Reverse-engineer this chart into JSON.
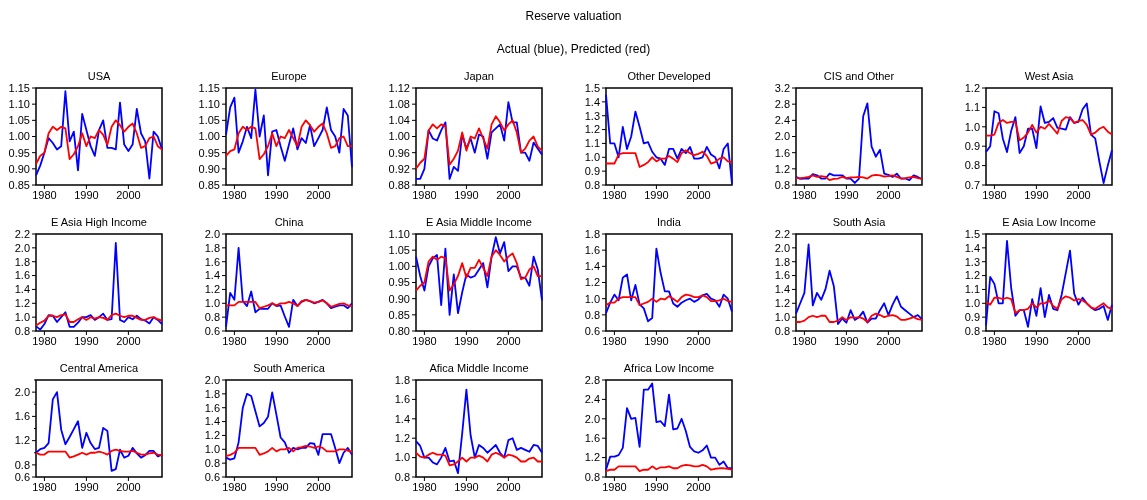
{
  "chart_data": [
    {
      "type": "other",
      "title": "Reserve valuation",
      "subtitle": "Actual (blue), Predicted (red)"
    },
    {
      "type": "line",
      "title": "USA",
      "x": [
        1978,
        1979,
        1980,
        1981,
        1982,
        1983,
        1984,
        1985,
        1986,
        1987,
        1988,
        1989,
        1990,
        1991,
        1992,
        1993,
        1994,
        1995,
        1996,
        1997,
        1998,
        1999,
        2000,
        2001,
        2002,
        2003,
        2004,
        2005,
        2006,
        2007,
        2008
      ],
      "xlim": [
        1978,
        2008
      ],
      "xticks": [
        1980,
        1990,
        2000
      ],
      "ylim": [
        0.85,
        1.15
      ],
      "yticks": [
        0.85,
        {
          "value": 0.9,
          "label": "0.90"
        },
        0.95,
        {
          "value": 1.0,
          "label": "1.00"
        },
        1.05,
        {
          "value": 1.1,
          "label": "1.10"
        },
        1.15
      ],
      "series": [
        {
          "color": "#0000ff",
          "values": [
            0.88,
            0.91,
            0.95,
            0.995,
            0.98,
            0.96,
            0.97,
            1.14,
            0.985,
            1.015,
            0.895,
            1.07,
            1.02,
            0.97,
            0.94,
            1.02,
            1.05,
            0.965,
            0.965,
            0.96,
            1.105,
            0.975,
            0.955,
            0.975,
            1.085,
            1.01,
            0.985,
            0.87,
            1.015,
            1.0,
            0.96
          ]
        },
        {
          "color": "#ff0000",
          "values": [
            0.915,
            0.94,
            0.95,
            1.01,
            1.03,
            1.02,
            1.03,
            1.025,
            0.93,
            0.945,
            0.97,
            1.01,
            0.97,
            1.0,
            0.995,
            1.02,
            1.005,
            0.975,
            1.03,
            1.05,
            1.035,
            1.015,
            1.03,
            1.04,
            1.01,
            0.965,
            0.97,
            0.995,
            1.0,
            0.97,
            0.96
          ]
        }
      ]
    },
    {
      "type": "line",
      "title": "Europe",
      "x": [
        1978,
        1979,
        1980,
        1981,
        1982,
        1983,
        1984,
        1985,
        1986,
        1987,
        1988,
        1989,
        1990,
        1991,
        1992,
        1993,
        1994,
        1995,
        1996,
        1997,
        1998,
        1999,
        2000,
        2001,
        2002,
        2003,
        2004,
        2005,
        2006,
        2007,
        2008
      ],
      "xlim": [
        1978,
        2008
      ],
      "xticks": [
        1980,
        1990,
        2000
      ],
      "ylim": [
        0.85,
        1.15
      ],
      "yticks": [
        0.85,
        {
          "value": 0.9,
          "label": "0.90"
        },
        0.95,
        {
          "value": 1.0,
          "label": "1.00"
        },
        1.05,
        {
          "value": 1.1,
          "label": "1.10"
        },
        1.15
      ],
      "series": [
        {
          "color": "#0000ff",
          "values": [
            1.005,
            1.09,
            1.12,
            0.95,
            0.985,
            1.03,
            0.995,
            1.145,
            1.0,
            1.065,
            0.88,
            1.015,
            1.02,
            0.97,
            0.925,
            0.975,
            1.025,
            0.96,
            0.995,
            0.98,
            1.035,
            0.97,
            0.995,
            1.02,
            1.09,
            1.02,
            1.0,
            0.95,
            1.085,
            1.065,
            0.905
          ]
        },
        {
          "color": "#ff0000",
          "values": [
            0.94,
            0.955,
            0.96,
            1.01,
            1.03,
            1.02,
            1.03,
            1.025,
            0.93,
            0.945,
            0.97,
            1.01,
            0.97,
            1.0,
            0.995,
            1.02,
            0.995,
            0.97,
            1.03,
            1.05,
            1.035,
            1.015,
            1.03,
            1.04,
            1.01,
            0.965,
            0.97,
            0.995,
            1.0,
            0.97,
            0.97
          ]
        }
      ]
    },
    {
      "type": "line",
      "title": "Japan",
      "x": [
        1978,
        1979,
        1980,
        1981,
        1982,
        1983,
        1984,
        1985,
        1986,
        1987,
        1988,
        1989,
        1990,
        1991,
        1992,
        1993,
        1994,
        1995,
        1996,
        1997,
        1998,
        1999,
        2000,
        2001,
        2002,
        2003,
        2004,
        2005,
        2006,
        2007,
        2008
      ],
      "xlim": [
        1978,
        2008
      ],
      "xticks": [
        1980,
        1990,
        2000
      ],
      "ylim": [
        0.88,
        1.12
      ],
      "yticks": [
        0.88,
        0.92,
        0.96,
        {
          "value": 1.0,
          "label": "1.00"
        },
        1.04,
        1.08,
        1.12
      ],
      "series": [
        {
          "color": "#0000ff",
          "values": [
            0.895,
            0.895,
            0.92,
            1.015,
            0.995,
            0.99,
            1.015,
            1.035,
            0.895,
            0.925,
            0.915,
            1.005,
            0.97,
            0.995,
            0.96,
            1.005,
            1.0,
            0.945,
            1.01,
            1.02,
            1.03,
            0.99,
            1.085,
            1.035,
            1.035,
            0.96,
            0.96,
            0.94,
            0.985,
            0.97,
            0.955
          ]
        },
        {
          "color": "#ff0000",
          "values": [
            0.92,
            0.935,
            0.945,
            1.015,
            1.03,
            1.02,
            1.03,
            1.025,
            0.93,
            0.945,
            0.965,
            1.01,
            0.965,
            1.0,
            0.995,
            1.02,
            0.995,
            0.97,
            1.03,
            1.05,
            1.035,
            1.015,
            1.03,
            1.04,
            1.01,
            0.96,
            0.97,
            0.99,
            1.0,
            0.975,
            0.965
          ]
        }
      ]
    },
    {
      "type": "line",
      "title": "Other Developed",
      "x": [
        1978,
        1979,
        1980,
        1981,
        1982,
        1983,
        1984,
        1985,
        1986,
        1987,
        1988,
        1989,
        1990,
        1991,
        1992,
        1993,
        1994,
        1995,
        1996,
        1997,
        1998,
        1999,
        2000,
        2001,
        2002,
        2003,
        2004,
        2005,
        2006,
        2007,
        2008
      ],
      "xlim": [
        1978,
        2008
      ],
      "xticks": [
        1980,
        1990,
        2000
      ],
      "ylim": [
        0.8,
        1.5
      ],
      "yticks": [
        0.8,
        0.9,
        {
          "value": 1.0,
          "label": "1.0"
        },
        1.1,
        1.2,
        1.3,
        1.4,
        1.5
      ],
      "series": [
        {
          "color": "#0000ff",
          "values": [
            1.45,
            1.1,
            1.1,
            1.0,
            1.22,
            1.06,
            1.15,
            1.33,
            1.22,
            1.1,
            1.11,
            1.04,
            1.0,
            0.99,
            0.945,
            1.06,
            1.06,
            0.99,
            1.06,
            1.03,
            1.075,
            0.99,
            0.99,
            1.0,
            1.075,
            1.02,
            1.0,
            0.92,
            1.06,
            1.1,
            0.81
          ]
        },
        {
          "color": "#ff0000",
          "values": [
            0.955,
            0.955,
            0.955,
            1.02,
            1.03,
            1.03,
            1.03,
            1.03,
            0.93,
            0.945,
            0.965,
            1.0,
            0.97,
            0.99,
            0.99,
            1.01,
            0.99,
            0.965,
            1.03,
            1.05,
            1.03,
            1.015,
            1.025,
            1.04,
            1.01,
            0.955,
            0.965,
            0.99,
            1.0,
            0.97,
            0.965
          ]
        }
      ]
    },
    {
      "type": "line",
      "title": "CIS and Other",
      "x": [
        1978,
        1979,
        1980,
        1981,
        1982,
        1983,
        1984,
        1985,
        1986,
        1987,
        1988,
        1989,
        1990,
        1991,
        1992,
        1993,
        1994,
        1995,
        1996,
        1997,
        1998,
        1999,
        2000,
        2001,
        2002,
        2003,
        2004,
        2005,
        2006,
        2007,
        2008
      ],
      "xlim": [
        1978,
        2008
      ],
      "xticks": [
        1980,
        1990,
        2000
      ],
      "ylim": [
        0.8,
        3.2
      ],
      "yticks": [
        0.8,
        1.2,
        1.6,
        {
          "value": 2.0,
          "label": "2.0"
        },
        2.4,
        2.8,
        3.2
      ],
      "series": [
        {
          "color": "#0000ff",
          "values": [
            1.0,
            0.95,
            0.96,
            0.96,
            1.07,
            1.04,
            0.96,
            0.96,
            1.08,
            1.04,
            1.04,
            1.04,
            0.96,
            0.96,
            0.85,
            0.96,
            2.5,
            2.82,
            1.75,
            1.5,
            1.67,
            1.08,
            1.05,
            1.0,
            1.08,
            0.96,
            0.96,
            0.92,
            1.04,
            1.0,
            0.94
          ]
        },
        {
          "color": "#ff0000",
          "values": [
            0.97,
            0.97,
            0.98,
            1.0,
            1.04,
            1.0,
            1.02,
            1.0,
            0.92,
            0.95,
            0.96,
            1.0,
            0.97,
            0.99,
            0.99,
            1.0,
            0.99,
            0.96,
            1.03,
            1.05,
            1.04,
            1.01,
            1.02,
            1.04,
            1.0,
            0.96,
            0.97,
            0.99,
            1.0,
            0.97,
            0.95
          ]
        }
      ]
    },
    {
      "type": "line",
      "title": "West Asia",
      "x": [
        1978,
        1979,
        1980,
        1981,
        1982,
        1983,
        1984,
        1985,
        1986,
        1987,
        1988,
        1989,
        1990,
        1991,
        1992,
        1993,
        1994,
        1995,
        1996,
        1997,
        1998,
        1999,
        2000,
        2001,
        2002,
        2003,
        2004,
        2005,
        2006,
        2007,
        2008
      ],
      "xlim": [
        1978,
        2008
      ],
      "xticks": [
        1980,
        1990,
        2000
      ],
      "ylim": [
        0.7,
        1.2
      ],
      "yticks": [
        0.7,
        0.8,
        0.9,
        {
          "value": 1.0,
          "label": "1.0"
        },
        1.1,
        1.2
      ],
      "series": [
        {
          "color": "#0000ff",
          "values": [
            0.87,
            0.9,
            1.08,
            1.07,
            0.94,
            0.87,
            0.98,
            1.05,
            0.865,
            0.9,
            0.99,
            0.99,
            0.89,
            1.105,
            1.02,
            1.025,
            1.045,
            0.995,
            0.99,
            0.985,
            1.05,
            1.02,
            1.025,
            1.09,
            1.12,
            0.96,
            0.94,
            0.82,
            0.71,
            0.8,
            0.88
          ]
        },
        {
          "color": "#ff0000",
          "values": [
            0.955,
            0.955,
            0.96,
            1.02,
            1.035,
            1.02,
            1.025,
            1.025,
            0.93,
            0.945,
            0.97,
            1.01,
            0.97,
            1.0,
            0.99,
            1.015,
            0.99,
            0.965,
            1.03,
            1.05,
            1.045,
            1.02,
            1.03,
            1.035,
            1.01,
            0.96,
            0.97,
            0.99,
            1.0,
            0.975,
            0.96
          ]
        }
      ]
    },
    {
      "type": "line",
      "title": "E Asia High Income",
      "x": [
        1978,
        1979,
        1980,
        1981,
        1982,
        1983,
        1984,
        1985,
        1986,
        1987,
        1988,
        1989,
        1990,
        1991,
        1992,
        1993,
        1994,
        1995,
        1996,
        1997,
        1998,
        1999,
        2000,
        2001,
        2002,
        2003,
        2004,
        2005,
        2006,
        2007,
        2008
      ],
      "xlim": [
        1978,
        2008
      ],
      "xticks": [
        1980,
        1990,
        2000
      ],
      "ylim": [
        0.8,
        2.2
      ],
      "yticks": [
        0.8,
        {
          "value": 1.0,
          "label": "1.0"
        },
        1.2,
        1.4,
        1.6,
        1.8,
        {
          "value": 2.0,
          "label": "2.0"
        },
        2.2
      ],
      "series": [
        {
          "color": "#0000ff",
          "values": [
            0.87,
            0.82,
            0.9,
            1.03,
            1.02,
            0.93,
            1.0,
            1.07,
            0.86,
            0.86,
            0.92,
            1.0,
            1.0,
            1.03,
            0.96,
            1.0,
            1.05,
            0.96,
            0.97,
            2.07,
            0.96,
            0.93,
            1.0,
            0.97,
            1.02,
            0.97,
            0.95,
            0.91,
            1.0,
            0.96,
            0.9
          ]
        },
        {
          "color": "#ff0000",
          "values": [
            0.88,
            0.92,
            0.95,
            1.02,
            1.02,
            1.0,
            1.03,
            1.04,
            0.93,
            0.93,
            0.97,
            1.0,
            0.96,
            1.0,
            0.98,
            1.0,
            0.99,
            0.96,
            1.03,
            1.05,
            1.02,
            1.0,
            1.02,
            1.02,
            0.99,
            0.96,
            0.96,
            0.99,
            1.0,
            0.97,
            0.95
          ]
        }
      ]
    },
    {
      "type": "line",
      "title": "China",
      "x": [
        1978,
        1979,
        1980,
        1981,
        1982,
        1983,
        1984,
        1985,
        1986,
        1987,
        1988,
        1989,
        1990,
        1991,
        1992,
        1993,
        1994,
        1995,
        1996,
        1997,
        1998,
        1999,
        2000,
        2001,
        2002,
        2003,
        2004,
        2005,
        2006,
        2007,
        2008
      ],
      "xlim": [
        1978,
        2008
      ],
      "xticks": [
        1980,
        1990,
        2000
      ],
      "ylim": [
        0.6,
        2.0
      ],
      "yticks": [
        0.6,
        0.8,
        {
          "value": 1.0,
          "label": "1.0"
        },
        1.2,
        1.4,
        1.6,
        1.8,
        {
          "value": 2.0,
          "label": "2.0"
        }
      ],
      "series": [
        {
          "color": "#0000ff",
          "values": [
            0.66,
            1.15,
            1.05,
            1.8,
            1.03,
            0.96,
            1.17,
            0.87,
            0.92,
            0.92,
            0.92,
            1.0,
            0.96,
            0.97,
            0.81,
            0.66,
            1.05,
            0.96,
            1.02,
            1.05,
            1.03,
            1.0,
            1.02,
            1.05,
            1.0,
            0.93,
            0.95,
            0.97,
            0.97,
            0.93,
            1.0
          ]
        },
        {
          "color": "#ff0000",
          "values": [
            0.97,
            0.97,
            0.97,
            1.02,
            1.02,
            1.02,
            1.02,
            1.02,
            0.93,
            0.95,
            0.97,
            1.0,
            0.97,
            1.0,
            1.0,
            1.02,
            1.0,
            0.96,
            1.03,
            1.05,
            1.03,
            1.01,
            1.02,
            1.04,
            1.0,
            0.95,
            0.97,
            0.99,
            1.0,
            0.97,
            0.96
          ]
        }
      ]
    },
    {
      "type": "line",
      "title": "E Asia Middle Income",
      "x": [
        1978,
        1979,
        1980,
        1981,
        1982,
        1983,
        1984,
        1985,
        1986,
        1987,
        1988,
        1989,
        1990,
        1991,
        1992,
        1993,
        1994,
        1995,
        1996,
        1997,
        1998,
        1999,
        2000,
        2001,
        2002,
        2003,
        2004,
        2005,
        2006,
        2007,
        2008
      ],
      "xlim": [
        1978,
        2008
      ],
      "xticks": [
        1980,
        1990,
        2000
      ],
      "ylim": [
        0.8,
        1.1
      ],
      "yticks": [
        {
          "value": 0.8,
          "label": "0.80"
        },
        0.85,
        {
          "value": 0.9,
          "label": "0.90"
        },
        0.95,
        {
          "value": 1.0,
          "label": "1.00"
        },
        1.05,
        {
          "value": 1.1,
          "label": "1.10"
        }
      ],
      "series": [
        {
          "color": "#0000ff",
          "values": [
            1.03,
            0.97,
            0.925,
            1.0,
            1.025,
            1.035,
            0.88,
            1.055,
            0.85,
            0.975,
            0.855,
            0.92,
            0.975,
            0.965,
            0.97,
            0.99,
            1.01,
            0.935,
            1.03,
            1.09,
            1.04,
            1.075,
            0.985,
            1.0,
            1.0,
            0.965,
            0.965,
            0.94,
            1.03,
            0.99,
            0.895
          ]
        },
        {
          "color": "#ff0000",
          "values": [
            0.925,
            0.94,
            0.95,
            1.015,
            1.03,
            1.02,
            1.03,
            1.025,
            0.925,
            0.945,
            0.97,
            1.01,
            0.965,
            0.995,
            0.995,
            1.02,
            0.995,
            0.97,
            1.03,
            1.05,
            1.035,
            1.015,
            1.03,
            1.04,
            1.01,
            0.96,
            0.965,
            0.99,
            1.0,
            0.97,
            0.97
          ]
        }
      ]
    },
    {
      "type": "line",
      "title": "India",
      "x": [
        1978,
        1979,
        1980,
        1981,
        1982,
        1983,
        1984,
        1985,
        1986,
        1987,
        1988,
        1989,
        1990,
        1991,
        1992,
        1993,
        1994,
        1995,
        1996,
        1997,
        1998,
        1999,
        2000,
        2001,
        2002,
        2003,
        2004,
        2005,
        2006,
        2007,
        2008
      ],
      "xlim": [
        1978,
        2008
      ],
      "xticks": [
        1980,
        1990,
        2000
      ],
      "ylim": [
        0.6,
        1.8
      ],
      "yticks": [
        0.6,
        0.8,
        {
          "value": 1.0,
          "label": "1.0"
        },
        1.2,
        1.4,
        1.6,
        1.8
      ],
      "series": [
        {
          "color": "#0000ff",
          "values": [
            0.82,
            0.95,
            1.05,
            0.98,
            1.26,
            1.3,
            0.98,
            1.17,
            0.93,
            0.88,
            0.72,
            0.76,
            1.62,
            1.32,
            1.09,
            1.09,
            0.94,
            0.9,
            0.95,
            0.98,
            1.0,
            0.96,
            0.99,
            1.04,
            1.06,
            1.0,
            0.98,
            0.9,
            1.05,
            1.0,
            0.84
          ]
        },
        {
          "color": "#ff0000",
          "values": [
            0.92,
            0.95,
            0.95,
            1.0,
            1.02,
            1.02,
            1.02,
            1.02,
            0.92,
            0.94,
            0.96,
            1.0,
            0.96,
            1.0,
            0.99,
            1.03,
            1.0,
            0.96,
            1.02,
            1.05,
            1.04,
            1.02,
            1.02,
            1.04,
            1.02,
            0.97,
            0.97,
            0.98,
            1.0,
            0.97,
            0.96
          ]
        }
      ]
    },
    {
      "type": "line",
      "title": "South Asia",
      "x": [
        1978,
        1979,
        1980,
        1981,
        1982,
        1983,
        1984,
        1985,
        1986,
        1987,
        1988,
        1989,
        1990,
        1991,
        1992,
        1993,
        1994,
        1995,
        1996,
        1997,
        1998,
        1999,
        2000,
        2001,
        2002,
        2003,
        2004,
        2005,
        2006,
        2007,
        2008
      ],
      "xlim": [
        1978,
        2008
      ],
      "xticks": [
        1980,
        1990,
        2000
      ],
      "ylim": [
        0.8,
        2.2
      ],
      "yticks": [
        0.8,
        {
          "value": 1.0,
          "label": "1.0"
        },
        1.2,
        1.4,
        1.6,
        1.8,
        {
          "value": 2.0,
          "label": "2.0"
        },
        2.2
      ],
      "series": [
        {
          "color": "#0000ff",
          "values": [
            1.05,
            1.2,
            1.35,
            2.05,
            1.17,
            1.35,
            1.25,
            1.4,
            1.67,
            1.45,
            0.9,
            0.98,
            0.92,
            1.1,
            0.96,
            1.0,
            1.08,
            0.92,
            0.98,
            0.98,
            1.1,
            1.2,
            1.03,
            1.18,
            1.3,
            1.15,
            1.1,
            1.05,
            1.0,
            1.03,
            0.97
          ]
        },
        {
          "color": "#ff0000",
          "values": [
            0.93,
            0.93,
            0.95,
            1.0,
            1.02,
            1.0,
            1.02,
            1.02,
            0.93,
            0.93,
            0.95,
            1.0,
            0.96,
            1.0,
            0.99,
            1.0,
            0.98,
            0.93,
            1.02,
            1.05,
            1.03,
            1.0,
            1.02,
            1.03,
            1.01,
            0.96,
            0.96,
            0.98,
            1.0,
            0.97,
            0.96
          ]
        }
      ]
    },
    {
      "type": "line",
      "title": "E Asia Low Income",
      "x": [
        1978,
        1979,
        1980,
        1981,
        1982,
        1983,
        1984,
        1985,
        1986,
        1987,
        1988,
        1989,
        1990,
        1991,
        1992,
        1993,
        1994,
        1995,
        1996,
        1997,
        1998,
        1999,
        2000,
        2001,
        2002,
        2003,
        2004,
        2005,
        2006,
        2007,
        2008
      ],
      "xlim": [
        1978,
        2008
      ],
      "xticks": [
        1980,
        1990,
        2000
      ],
      "ylim": [
        0.8,
        1.5
      ],
      "yticks": [
        0.8,
        0.9,
        {
          "value": 1.0,
          "label": "1.0"
        },
        1.1,
        1.2,
        1.3,
        1.4,
        1.5
      ],
      "series": [
        {
          "color": "#0000ff",
          "values": [
            0.84,
            1.19,
            1.14,
            1.0,
            1.0,
            1.45,
            1.11,
            0.91,
            0.95,
            0.95,
            0.83,
            1.03,
            0.91,
            1.11,
            0.9,
            1.06,
            0.96,
            0.95,
            1.06,
            1.22,
            1.38,
            1.07,
            0.99,
            1.04,
            1.0,
            0.97,
            0.95,
            0.96,
            0.98,
            0.88,
            0.99
          ]
        },
        {
          "color": "#ff0000",
          "values": [
            1.01,
            0.99,
            1.04,
            1.04,
            1.03,
            1.04,
            1.03,
            0.93,
            0.95,
            0.95,
            0.96,
            1.0,
            0.97,
            1.0,
            1.0,
            1.02,
            0.98,
            0.96,
            1.03,
            1.05,
            1.04,
            1.02,
            1.03,
            1.02,
            1.0,
            0.97,
            0.96,
            0.98,
            1.0,
            0.97,
            0.96
          ]
        }
      ]
    },
    {
      "type": "line",
      "title": "Central America",
      "x": [
        1978,
        1979,
        1980,
        1981,
        1982,
        1983,
        1984,
        1985,
        1986,
        1987,
        1988,
        1989,
        1990,
        1991,
        1992,
        1993,
        1994,
        1995,
        1996,
        1997,
        1998,
        1999,
        2000,
        2001,
        2002,
        2003,
        2004,
        2005,
        2006,
        2007,
        2008
      ],
      "xlim": [
        1978,
        2008
      ],
      "xticks": [
        1980,
        1990,
        2000
      ],
      "ylim": [
        0.6,
        2.2
      ],
      "yticks": [
        0.6,
        0.8,
        {
          "value": 1.0,
          "label": null
        },
        1.2,
        {
          "value": 1.4,
          "label": null
        },
        1.6,
        {
          "value": 1.8,
          "label": null
        },
        {
          "value": 2.0,
          "label": "2.0"
        },
        {
          "value": 2.2,
          "label": null
        }
      ],
      "series": [
        {
          "color": "#0000ff",
          "values": [
            1.0,
            1.06,
            1.08,
            1.16,
            1.88,
            2.0,
            1.38,
            1.14,
            1.26,
            1.39,
            1.52,
            1.08,
            1.33,
            1.16,
            1.06,
            1.08,
            1.41,
            1.36,
            0.7,
            0.73,
            1.05,
            0.92,
            0.95,
            1.08,
            0.99,
            0.92,
            0.96,
            1.03,
            1.03,
            0.94,
            0.97
          ]
        },
        {
          "color": "#ff0000",
          "values": [
            1.0,
            0.97,
            0.97,
            1.02,
            1.02,
            1.02,
            1.02,
            1.02,
            0.92,
            0.94,
            0.97,
            1.0,
            0.97,
            1.0,
            1.0,
            1.02,
            1.0,
            0.97,
            1.03,
            1.05,
            1.03,
            1.02,
            1.02,
            1.03,
            1.0,
            0.97,
            0.97,
            0.99,
            1.0,
            0.97,
            0.96
          ]
        }
      ]
    },
    {
      "type": "line",
      "title": "South America",
      "x": [
        1978,
        1979,
        1980,
        1981,
        1982,
        1983,
        1984,
        1985,
        1986,
        1987,
        1988,
        1989,
        1990,
        1991,
        1992,
        1993,
        1994,
        1995,
        1996,
        1997,
        1998,
        1999,
        2000,
        2001,
        2002,
        2003,
        2004,
        2005,
        2006,
        2007,
        2008
      ],
      "xlim": [
        1978,
        2008
      ],
      "xticks": [
        1980,
        1990,
        2000
      ],
      "ylim": [
        0.6,
        2.0
      ],
      "yticks": [
        0.6,
        0.8,
        {
          "value": 1.0,
          "label": "1.0"
        },
        1.2,
        1.4,
        1.6,
        1.8,
        {
          "value": 2.0,
          "label": "2.0"
        }
      ],
      "series": [
        {
          "color": "#0000ff",
          "values": [
            0.88,
            0.85,
            0.87,
            1.1,
            1.6,
            1.8,
            1.77,
            1.55,
            1.33,
            1.38,
            1.47,
            1.82,
            1.5,
            1.17,
            1.1,
            0.95,
            1.02,
            1.0,
            1.02,
            1.02,
            1.09,
            1.08,
            0.92,
            1.22,
            1.22,
            1.22,
            1.02,
            0.8,
            0.95,
            1.02,
            0.92
          ]
        },
        {
          "color": "#ff0000",
          "values": [
            0.9,
            0.92,
            0.95,
            1.02,
            1.02,
            1.02,
            1.02,
            1.02,
            0.92,
            0.94,
            0.97,
            1.02,
            0.97,
            1.0,
            1.0,
            1.02,
            0.97,
            1.02,
            1.03,
            1.05,
            1.04,
            1.02,
            1.04,
            1.02,
            0.97,
            0.97,
            0.97,
            1.0,
            1.0,
            0.98,
            0.96
          ]
        }
      ]
    },
    {
      "type": "line",
      "title": "Afica Middle Income",
      "x": [
        1978,
        1979,
        1980,
        1981,
        1982,
        1983,
        1984,
        1985,
        1986,
        1987,
        1988,
        1989,
        1990,
        1991,
        1992,
        1993,
        1994,
        1995,
        1996,
        1997,
        1998,
        1999,
        2000,
        2001,
        2002,
        2003,
        2004,
        2005,
        2006,
        2007,
        2008
      ],
      "xlim": [
        1978,
        2008
      ],
      "xticks": [
        1980,
        1990,
        2000
      ],
      "ylim": [
        0.8,
        1.8
      ],
      "yticks": [
        0.8,
        {
          "value": 1.0,
          "label": "1.0"
        },
        1.2,
        1.4,
        1.6,
        1.8
      ],
      "series": [
        {
          "color": "#0000ff",
          "values": [
            1.17,
            1.12,
            1.0,
            1.0,
            0.95,
            0.93,
            1.0,
            1.1,
            0.96,
            0.97,
            0.84,
            1.25,
            1.7,
            1.23,
            1.0,
            1.13,
            1.1,
            1.05,
            1.09,
            1.13,
            1.05,
            1.0,
            1.18,
            1.2,
            1.08,
            1.1,
            1.08,
            1.06,
            1.13,
            1.12,
            1.05
          ]
        },
        {
          "color": "#ff0000",
          "values": [
            1.05,
            1.01,
            1.0,
            1.03,
            1.05,
            1.03,
            1.03,
            1.02,
            0.92,
            0.93,
            0.96,
            1.0,
            0.96,
            1.0,
            1.0,
            1.02,
            1.0,
            0.96,
            1.03,
            1.05,
            1.03,
            1.0,
            1.03,
            1.02,
            1.0,
            0.96,
            0.96,
            0.99,
            1.0,
            0.96,
            0.96
          ]
        }
      ]
    },
    {
      "type": "line",
      "title": "Africa Low Income",
      "x": [
        1978,
        1979,
        1980,
        1981,
        1982,
        1983,
        1984,
        1985,
        1986,
        1987,
        1988,
        1989,
        1990,
        1991,
        1992,
        1993,
        1994,
        1995,
        1996,
        1997,
        1998,
        1999,
        2000,
        2001,
        2002,
        2003,
        2004,
        2005,
        2006,
        2007,
        2008
      ],
      "xlim": [
        1978,
        2008
      ],
      "xticks": [
        1980,
        1990,
        2000
      ],
      "ylim": [
        0.8,
        2.8
      ],
      "yticks": [
        0.8,
        1.2,
        1.6,
        {
          "value": 2.0,
          "label": "2.0"
        },
        2.4,
        2.8
      ],
      "series": [
        {
          "color": "#0000ff",
          "values": [
            0.95,
            1.22,
            1.22,
            1.25,
            1.4,
            2.22,
            2.0,
            2.02,
            1.42,
            2.6,
            2.6,
            2.73,
            1.93,
            1.95,
            1.85,
            2.5,
            1.78,
            1.8,
            2.0,
            1.75,
            1.42,
            1.33,
            1.3,
            1.35,
            1.45,
            1.2,
            1.2,
            1.05,
            1.12,
            0.98,
            0.98
          ]
        },
        {
          "color": "#ff0000",
          "values": [
            0.92,
            0.95,
            0.95,
            1.02,
            1.02,
            1.02,
            1.02,
            1.02,
            0.92,
            0.95,
            0.95,
            1.02,
            0.96,
            1.0,
            1.0,
            1.02,
            0.98,
            0.98,
            1.03,
            1.05,
            1.04,
            1.02,
            1.02,
            1.05,
            1.02,
            0.95,
            0.97,
            0.98,
            0.98,
            0.97,
            0.95
          ]
        }
      ]
    }
  ]
}
